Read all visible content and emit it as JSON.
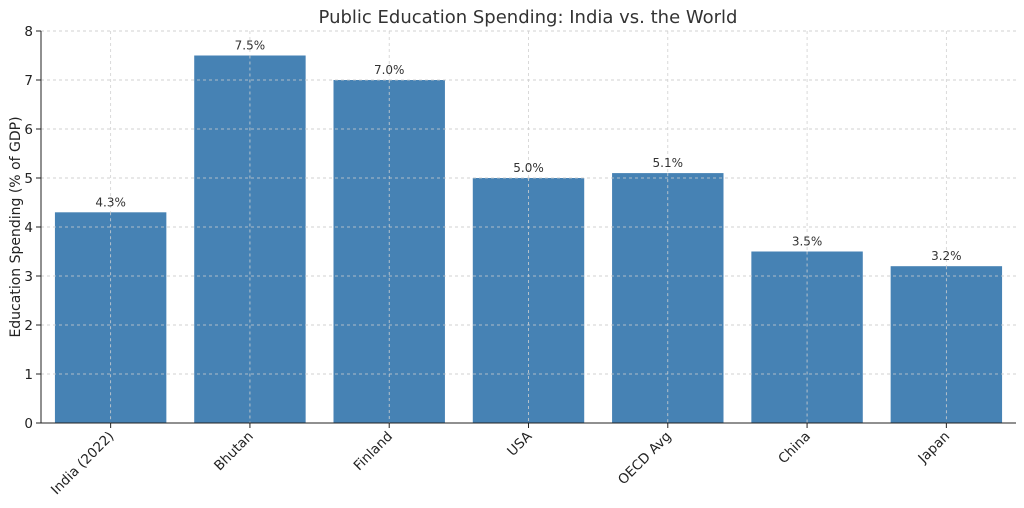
{
  "chart_data": {
    "type": "bar",
    "title": "Public Education Spending: India vs. the World",
    "xlabel": "",
    "ylabel": "Education Spending (% of GDP)",
    "categories": [
      "India (2022)",
      "Bhutan",
      "Finland",
      "USA",
      "OECD Avg",
      "China",
      "Japan"
    ],
    "values": [
      4.3,
      7.5,
      7.0,
      5.0,
      5.1,
      3.5,
      3.2
    ],
    "data_labels": [
      "4.3%",
      "7.5%",
      "7.0%",
      "5.0%",
      "5.1%",
      "3.5%",
      "3.2%"
    ],
    "ylim": [
      0,
      8
    ],
    "yticks": [
      0,
      1,
      2,
      3,
      4,
      5,
      6,
      7,
      8
    ],
    "grid": true,
    "bar_color": "#4682b4"
  }
}
